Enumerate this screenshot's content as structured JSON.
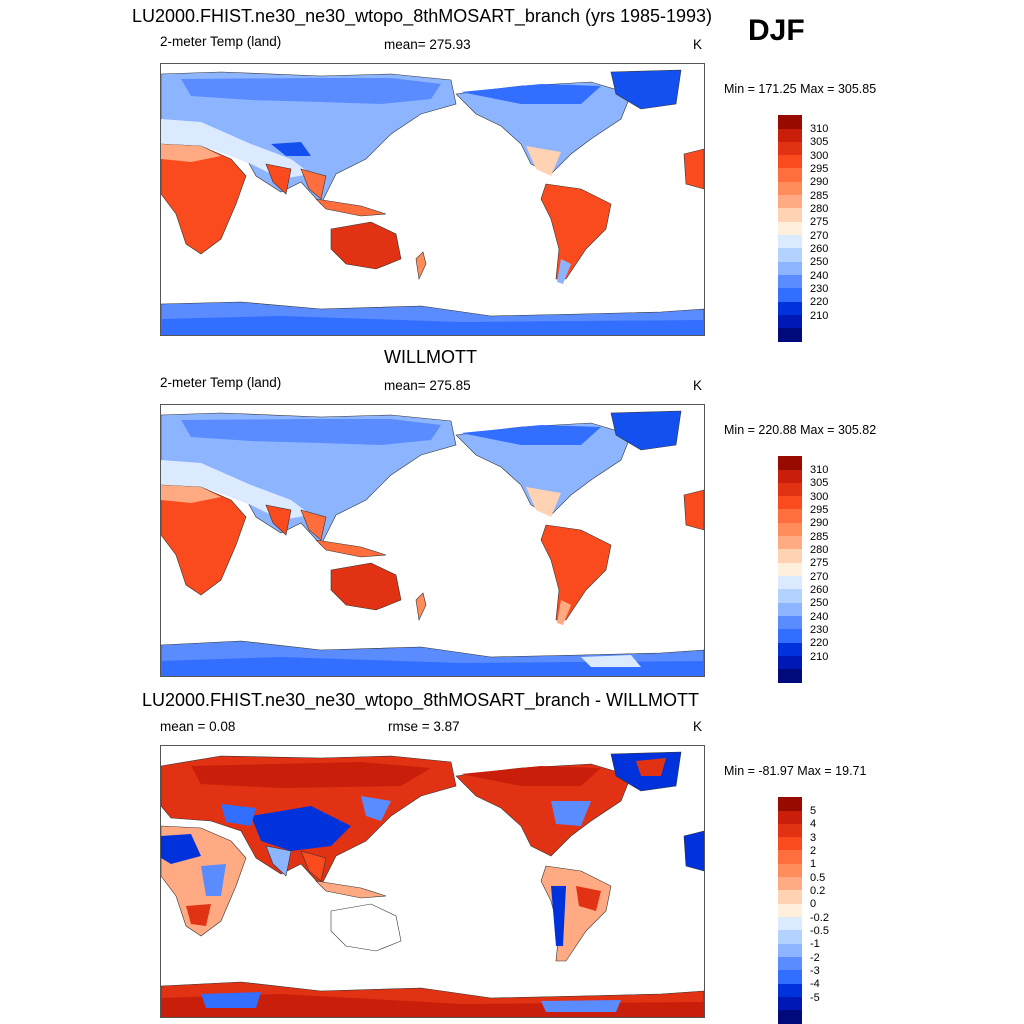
{
  "season": "DJF",
  "units": "K",
  "colors": {
    "absolute": [
      "#000a7a",
      "#0019b4",
      "#0032dc",
      "#1450f0",
      "#326eff",
      "#5a8cff",
      "#8cb4ff",
      "#b4d2ff",
      "#dceaff",
      "#fff0dc",
      "#ffd2b4",
      "#ffaa82",
      "#ff8c5a",
      "#ff6e3c",
      "#fa4b1e",
      "#e13214",
      "#c81e0a",
      "#960a00"
    ],
    "diff": [
      "#000a7a",
      "#0019b4",
      "#0032dc",
      "#1450f0",
      "#326eff",
      "#5a8cff",
      "#8cb4ff",
      "#b4d2ff",
      "#dceaff",
      "#fff0dc",
      "#ffd2b4",
      "#ffaa82",
      "#ff8c5a",
      "#ff6e3c",
      "#fa4b1e",
      "#e13214",
      "#c81e0a",
      "#960a00"
    ]
  },
  "panels": [
    {
      "title": "LU2000.FHIST.ne30_ne30_wtopo_8thMOSART_branch (yrs 1985-1993)",
      "left_label": "2-meter Temp (land)",
      "center_label": "mean= 275.93",
      "right_label": "K",
      "minmax": "Min = 171.25 Max = 305.85",
      "colorbar_labels": [
        "310",
        "305",
        "300",
        "295",
        "290",
        "285",
        "280",
        "275",
        "270",
        "260",
        "250",
        "240",
        "230",
        "220",
        "210"
      ]
    },
    {
      "title": "WILLMOTT",
      "left_label": "2-meter Temp (land)",
      "center_label": "mean= 275.85",
      "right_label": "K",
      "minmax": "Min = 220.88 Max = 305.82",
      "colorbar_labels": [
        "310",
        "305",
        "300",
        "295",
        "290",
        "285",
        "280",
        "275",
        "270",
        "260",
        "250",
        "240",
        "230",
        "220",
        "210"
      ]
    },
    {
      "title": "LU2000.FHIST.ne30_ne30_wtopo_8thMOSART_branch - WILLMOTT",
      "left_label": "mean =   0.08",
      "center_label": "rmse =   3.87",
      "right_label": "K",
      "minmax": "Min = -81.97 Max =  19.71",
      "colorbar_labels": [
        "5",
        "4",
        "3",
        "2",
        "1",
        "0.5",
        "0.2",
        "0",
        "-0.2",
        "-0.5",
        "-1",
        "-2",
        "-3",
        "-4",
        "-5"
      ]
    }
  ]
}
